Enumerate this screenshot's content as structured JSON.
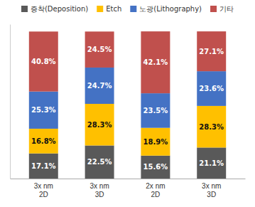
{
  "chart_data": {
    "type": "bar",
    "stacked": true,
    "categories": [
      "3x nm\n2D",
      "3x nm\n3D",
      "2x nm\n2D",
      "3x nm\n3D"
    ],
    "series": [
      {
        "name": "증착(Deposition)",
        "color": "#595959",
        "values": [
          17.1,
          22.5,
          15.6,
          21.1
        ],
        "value_labels": [
          "17.1%",
          "22.5%",
          "15.6%",
          "21.1%"
        ]
      },
      {
        "name": "Etch",
        "color": "#FFC000",
        "values": [
          16.8,
          28.3,
          18.9,
          28.3
        ],
        "value_labels": [
          "16.8%",
          "28.3%",
          "18.9%",
          "28.3%"
        ]
      },
      {
        "name": "노광(Lithography)",
        "color": "#4472C4",
        "values": [
          25.3,
          24.7,
          23.5,
          23.6
        ],
        "value_labels": [
          "25.3%",
          "24.7%",
          "23.5%",
          "23.6%"
        ]
      },
      {
        "name": "기타",
        "color": "#C0504D",
        "values": [
          40.8,
          24.5,
          42.1,
          27.1
        ],
        "value_labels": [
          "40.8%",
          "24.5%",
          "42.1%",
          "27.1%"
        ]
      }
    ],
    "ylim": [
      0,
      105
    ],
    "grid": false,
    "legend": "top",
    "data_labels": true,
    "tick_labels": "x"
  }
}
